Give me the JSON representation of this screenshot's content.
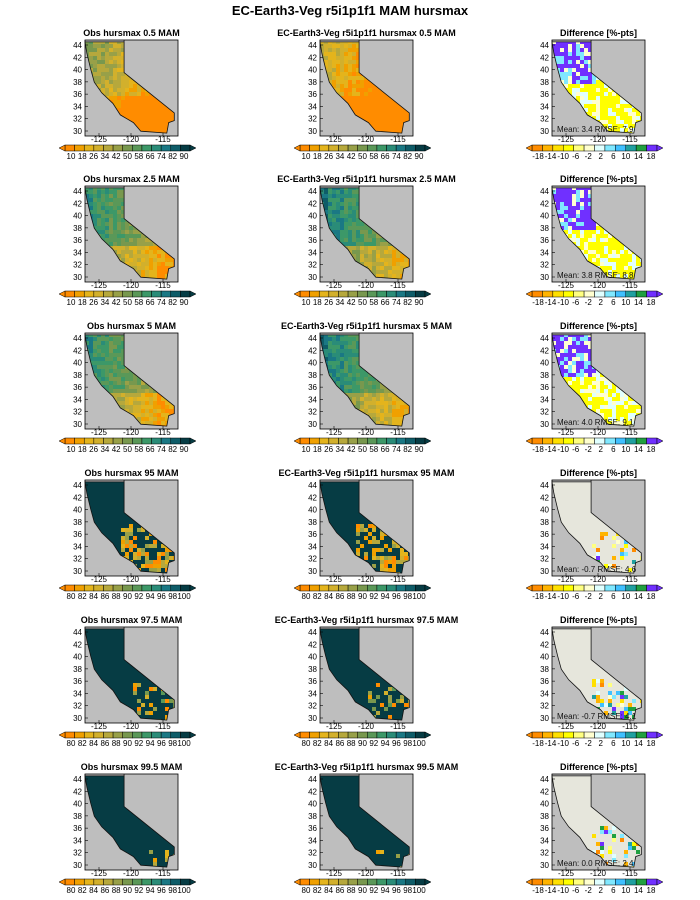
{
  "page_title": "EC-Earth3-Veg r5i1p1f1 MAM hursmax",
  "colors": {
    "map_bg": "#bebebe",
    "coast": "#111111",
    "ocean_bg": "#bebebe"
  },
  "palettes": {
    "hurs": [
      "#ff8c00",
      "#f0a000",
      "#e4b41c",
      "#d2b02c",
      "#b6a83c",
      "#98a048",
      "#78984e",
      "#5a9858",
      "#3c9868",
      "#2a8c78",
      "#1a7884",
      "#0e5c68",
      "#063c44"
    ],
    "diff": [
      "#ff8c00",
      "#ffb400",
      "#ffe000",
      "#ffff00",
      "#ffff80",
      "#ffffd0",
      "#e0ffff",
      "#80e8ff",
      "#40c0ff",
      "#20a0a0",
      "#20a040",
      "#7030ff"
    ]
  },
  "chart_data": [
    {
      "type": "heatmap",
      "title": "Obs hursmax 0.5 MAM",
      "x_ticks": [
        "-125",
        "-120",
        "-115"
      ],
      "y_ticks": [
        "44",
        "42",
        "40",
        "38",
        "36",
        "34",
        "32",
        "30"
      ],
      "colorbar": {
        "labels": [
          "10",
          "18",
          "26",
          "34",
          "42",
          "50",
          "58",
          "66",
          "74",
          "82",
          "90"
        ],
        "palette": "hurs"
      },
      "pattern": "low"
    },
    {
      "type": "heatmap",
      "title": "EC-Earth3-Veg r5i1p1f1 hursmax 0.5 MAM",
      "x_ticks": [
        "-125",
        "-120",
        "-115"
      ],
      "y_ticks": [
        "44",
        "42",
        "40",
        "38",
        "36",
        "34",
        "32",
        "30"
      ],
      "colorbar": {
        "labels": [
          "10",
          "18",
          "26",
          "34",
          "42",
          "50",
          "58",
          "66",
          "74",
          "82",
          "90"
        ],
        "palette": "hurs"
      },
      "pattern": "low_model"
    },
    {
      "type": "heatmap",
      "title": "Difference [%-pts]",
      "x_ticks": [
        "-125",
        "-120",
        "-115"
      ],
      "y_ticks": [
        "44",
        "42",
        "40",
        "38",
        "36",
        "34",
        "32",
        "30"
      ],
      "colorbar": {
        "labels": [
          "-18",
          "-14",
          "-10",
          "-6",
          "-2",
          "2",
          "6",
          "10",
          "14",
          "18"
        ],
        "palette": "diff"
      },
      "stats": {
        "mean": "3.4",
        "rmse": "7.9"
      },
      "stat_label": "Mean: 3.4  RMSE: 7.9",
      "pattern": "diff_pos"
    },
    {
      "type": "heatmap",
      "title": "Obs hursmax 2.5 MAM",
      "x_ticks": [
        "-125",
        "-120",
        "-115"
      ],
      "y_ticks": [
        "44",
        "42",
        "40",
        "38",
        "36",
        "34",
        "32",
        "30"
      ],
      "colorbar": {
        "labels": [
          "10",
          "18",
          "26",
          "34",
          "42",
          "50",
          "58",
          "66",
          "74",
          "82",
          "90"
        ],
        "palette": "hurs"
      },
      "pattern": "mid"
    },
    {
      "type": "heatmap",
      "title": "EC-Earth3-Veg r5i1p1f1 hursmax 2.5 MAM",
      "x_ticks": [
        "-125",
        "-120",
        "-115"
      ],
      "y_ticks": [
        "44",
        "42",
        "40",
        "38",
        "36",
        "34",
        "32",
        "30"
      ],
      "colorbar": {
        "labels": [
          "10",
          "18",
          "26",
          "34",
          "42",
          "50",
          "58",
          "66",
          "74",
          "82",
          "90"
        ],
        "palette": "hurs"
      },
      "pattern": "mid_model"
    },
    {
      "type": "heatmap",
      "title": "Difference [%-pts]",
      "x_ticks": [
        "-125",
        "-120",
        "-115"
      ],
      "y_ticks": [
        "44",
        "42",
        "40",
        "38",
        "36",
        "34",
        "32",
        "30"
      ],
      "colorbar": {
        "labels": [
          "-18",
          "-14",
          "-10",
          "-6",
          "-2",
          "2",
          "6",
          "10",
          "14",
          "18"
        ],
        "palette": "diff"
      },
      "stats": {
        "mean": "3.8",
        "rmse": "8.8"
      },
      "stat_label": "Mean: 3.8  RMSE: 8.8",
      "pattern": "diff_pos"
    },
    {
      "type": "heatmap",
      "title": "Obs hursmax 5 MAM",
      "x_ticks": [
        "-125",
        "-120",
        "-115"
      ],
      "y_ticks": [
        "44",
        "42",
        "40",
        "38",
        "36",
        "34",
        "32",
        "30"
      ],
      "colorbar": {
        "labels": [
          "10",
          "18",
          "26",
          "34",
          "42",
          "50",
          "58",
          "66",
          "74",
          "82",
          "90"
        ],
        "palette": "hurs"
      },
      "pattern": "mid"
    },
    {
      "type": "heatmap",
      "title": "EC-Earth3-Veg r5i1p1f1 hursmax 5 MAM",
      "x_ticks": [
        "-125",
        "-120",
        "-115"
      ],
      "y_ticks": [
        "44",
        "42",
        "40",
        "38",
        "36",
        "34",
        "32",
        "30"
      ],
      "colorbar": {
        "labels": [
          "10",
          "18",
          "26",
          "34",
          "42",
          "50",
          "58",
          "66",
          "74",
          "82",
          "90"
        ],
        "palette": "hurs"
      },
      "pattern": "mid_model"
    },
    {
      "type": "heatmap",
      "title": "Difference [%-pts]",
      "x_ticks": [
        "-125",
        "-120",
        "-115"
      ],
      "y_ticks": [
        "44",
        "42",
        "40",
        "38",
        "36",
        "34",
        "32",
        "30"
      ],
      "colorbar": {
        "labels": [
          "-18",
          "-14",
          "-10",
          "-6",
          "-2",
          "2",
          "6",
          "10",
          "14",
          "18"
        ],
        "palette": "diff"
      },
      "stats": {
        "mean": "4.0",
        "rmse": "9.1"
      },
      "stat_label": "Mean: 4.0  RMSE: 9.1",
      "pattern": "diff_pos"
    },
    {
      "type": "heatmap",
      "title": "Obs hursmax 95 MAM",
      "x_ticks": [
        "-125",
        "-120",
        "-115"
      ],
      "y_ticks": [
        "44",
        "42",
        "40",
        "38",
        "36",
        "34",
        "32",
        "30"
      ],
      "colorbar": {
        "labels": [
          "80",
          "82",
          "84",
          "86",
          "88",
          "90",
          "92",
          "94",
          "96",
          "98",
          "100"
        ],
        "palette": "hurs"
      },
      "pattern": "high"
    },
    {
      "type": "heatmap",
      "title": "EC-Earth3-Veg r5i1p1f1 hursmax 95 MAM",
      "x_ticks": [
        "-125",
        "-120",
        "-115"
      ],
      "y_ticks": [
        "44",
        "42",
        "40",
        "38",
        "36",
        "34",
        "32",
        "30"
      ],
      "colorbar": {
        "labels": [
          "80",
          "82",
          "84",
          "86",
          "88",
          "90",
          "92",
          "94",
          "96",
          "98",
          "100"
        ],
        "palette": "hurs"
      },
      "pattern": "high"
    },
    {
      "type": "heatmap",
      "title": "Difference [%-pts]",
      "x_ticks": [
        "-125",
        "-120",
        "-115"
      ],
      "y_ticks": [
        "44",
        "42",
        "40",
        "38",
        "36",
        "34",
        "32",
        "30"
      ],
      "colorbar": {
        "labels": [
          "-18",
          "-14",
          "-10",
          "-6",
          "-2",
          "2",
          "6",
          "10",
          "14",
          "18"
        ],
        "palette": "diff"
      },
      "stats": {
        "mean": "-0.7",
        "rmse": "4.6"
      },
      "stat_label": "Mean: -0.7  RMSE: 4.6",
      "pattern": "diff_zero"
    },
    {
      "type": "heatmap",
      "title": "Obs hursmax 97.5 MAM",
      "x_ticks": [
        "-125",
        "-120",
        "-115"
      ],
      "y_ticks": [
        "44",
        "42",
        "40",
        "38",
        "36",
        "34",
        "32",
        "30"
      ],
      "colorbar": {
        "labels": [
          "80",
          "82",
          "84",
          "86",
          "88",
          "90",
          "92",
          "94",
          "96",
          "98",
          "100"
        ],
        "palette": "hurs"
      },
      "pattern": "higher"
    },
    {
      "type": "heatmap",
      "title": "EC-Earth3-Veg r5i1p1f1 hursmax 97.5 MAM",
      "x_ticks": [
        "-125",
        "-120",
        "-115"
      ],
      "y_ticks": [
        "44",
        "42",
        "40",
        "38",
        "36",
        "34",
        "32",
        "30"
      ],
      "colorbar": {
        "labels": [
          "80",
          "82",
          "84",
          "86",
          "88",
          "90",
          "92",
          "94",
          "96",
          "98",
          "100"
        ],
        "palette": "hurs"
      },
      "pattern": "higher"
    },
    {
      "type": "heatmap",
      "title": "Difference [%-pts]",
      "x_ticks": [
        "-125",
        "-120",
        "-115"
      ],
      "y_ticks": [
        "44",
        "42",
        "40",
        "38",
        "36",
        "34",
        "32",
        "30"
      ],
      "colorbar": {
        "labels": [
          "-18",
          "-14",
          "-10",
          "-6",
          "-2",
          "2",
          "6",
          "10",
          "14",
          "18"
        ],
        "palette": "diff"
      },
      "stats": {
        "mean": "-0.7",
        "rmse": "4.1"
      },
      "stat_label": "Mean: -0.7  RMSE: 4.1",
      "pattern": "diff_zero"
    },
    {
      "type": "heatmap",
      "title": "Obs hursmax 99.5 MAM",
      "x_ticks": [
        "-125",
        "-120",
        "-115"
      ],
      "y_ticks": [
        "44",
        "42",
        "40",
        "38",
        "36",
        "34",
        "32",
        "30"
      ],
      "colorbar": {
        "labels": [
          "80",
          "82",
          "84",
          "86",
          "88",
          "90",
          "92",
          "94",
          "96",
          "98",
          "100"
        ],
        "palette": "hurs"
      },
      "pattern": "highest"
    },
    {
      "type": "heatmap",
      "title": "EC-Earth3-Veg r5i1p1f1 hursmax 99.5 MAM",
      "x_ticks": [
        "-125",
        "-120",
        "-115"
      ],
      "y_ticks": [
        "44",
        "42",
        "40",
        "38",
        "36",
        "34",
        "32",
        "30"
      ],
      "colorbar": {
        "labels": [
          "80",
          "82",
          "84",
          "86",
          "88",
          "90",
          "92",
          "94",
          "96",
          "98",
          "100"
        ],
        "palette": "hurs"
      },
      "pattern": "highest"
    },
    {
      "type": "heatmap",
      "title": "Difference [%-pts]",
      "x_ticks": [
        "-125",
        "-120",
        "-115"
      ],
      "y_ticks": [
        "44",
        "42",
        "40",
        "38",
        "36",
        "34",
        "32",
        "30"
      ],
      "colorbar": {
        "labels": [
          "-18",
          "-14",
          "-10",
          "-6",
          "-2",
          "2",
          "6",
          "10",
          "14",
          "18"
        ],
        "palette": "diff"
      },
      "stats": {
        "mean": "0.0",
        "rmse": "2.4"
      },
      "stat_label": "Mean: 0.0  RMSE: 2.4",
      "pattern": "diff_zero"
    }
  ]
}
